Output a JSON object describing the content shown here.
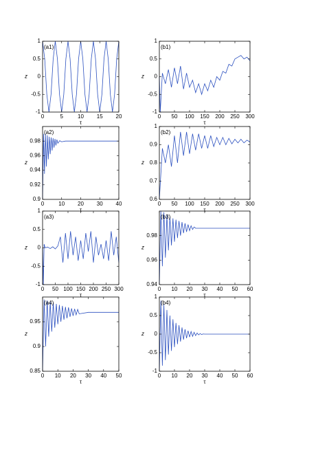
{
  "chart_data": [
    {
      "type": "line",
      "label": "(a1)",
      "xlabel": "τ",
      "ylabel": "z",
      "xlim": [
        0,
        20
      ],
      "ylim": [
        -1,
        1
      ],
      "xticks": [
        0,
        5,
        10,
        15,
        20
      ],
      "yticks": [
        -1,
        -0.5,
        0,
        0.5,
        1
      ],
      "color": "#2a4fbf",
      "x": [
        0,
        0.56,
        1.11,
        1.67,
        2.22,
        2.78,
        3.33,
        3.89,
        4.44,
        5,
        5.56,
        6.11,
        6.67,
        7.22,
        7.78,
        8.33,
        8.89,
        9.44,
        10,
        10.56,
        11.11,
        11.67,
        12.22,
        12.78,
        13.33,
        13.89,
        14.44,
        15,
        15.56,
        16.11,
        16.67,
        17.22,
        17.78,
        18.33,
        18.89,
        19.44,
        20
      ],
      "values": [
        1,
        0.5,
        -0.5,
        -1,
        -0.5,
        0.5,
        1,
        0.5,
        -0.5,
        -1,
        -0.5,
        0.5,
        1,
        0.5,
        -0.5,
        -1,
        -0.5,
        0.5,
        1,
        0.5,
        -0.5,
        -1,
        -0.5,
        0.5,
        1,
        0.5,
        -0.5,
        -1,
        -0.5,
        0.5,
        1,
        0.5,
        -0.5,
        -1,
        -0.5,
        0.5,
        1
      ]
    },
    {
      "type": "line",
      "label": "(b1)",
      "xlabel": "τ",
      "ylabel": "z",
      "xlim": [
        0,
        300
      ],
      "ylim": [
        -1,
        1
      ],
      "xticks": [
        0,
        50,
        100,
        150,
        200,
        250,
        300
      ],
      "yticks": [
        -1,
        -0.5,
        0,
        0.5,
        1
      ],
      "color": "#2a4fbf",
      "x": [
        0,
        3,
        10,
        20,
        30,
        40,
        50,
        60,
        70,
        80,
        90,
        100,
        110,
        120,
        130,
        140,
        150,
        160,
        170,
        180,
        190,
        200,
        210,
        220,
        230,
        240,
        250,
        260,
        270,
        280,
        290,
        300
      ],
      "values": [
        0,
        -1,
        0.1,
        -0.2,
        0.2,
        -0.3,
        0.25,
        -0.2,
        0.3,
        -0.35,
        0.1,
        -0.3,
        -0.1,
        -0.45,
        -0.2,
        -0.5,
        -0.2,
        -0.4,
        -0.1,
        -0.3,
        0,
        -0.1,
        0.15,
        0.1,
        0.35,
        0.3,
        0.5,
        0.55,
        0.6,
        0.5,
        0.55,
        0.45
      ]
    },
    {
      "type": "line",
      "label": "(a2)",
      "xlabel": "τ",
      "ylabel": "z",
      "xlim": [
        0,
        40
      ],
      "ylim": [
        0.9,
        1
      ],
      "xticks": [
        0,
        10,
        20,
        30,
        40
      ],
      "yticks": [
        0.9,
        0.92,
        0.94,
        0.96,
        0.98
      ],
      "color": "#2a4fbf",
      "x": [
        0,
        0.5,
        1,
        1.5,
        2,
        2.5,
        3,
        3.5,
        4,
        4.5,
        5,
        5.5,
        6,
        6.5,
        7,
        7.5,
        8,
        9,
        10,
        12,
        15,
        40
      ],
      "values": [
        0.9,
        0.99,
        0.935,
        0.99,
        0.945,
        0.988,
        0.955,
        0.986,
        0.962,
        0.985,
        0.967,
        0.984,
        0.971,
        0.983,
        0.974,
        0.982,
        0.977,
        0.9805,
        0.979,
        0.98,
        0.98,
        0.98
      ]
    },
    {
      "type": "line",
      "label": "(b2)",
      "xlabel": "τ",
      "ylabel": "z",
      "xlim": [
        0,
        300
      ],
      "ylim": [
        0.6,
        1
      ],
      "xticks": [
        0,
        50,
        100,
        150,
        200,
        250,
        300
      ],
      "yticks": [
        0.6,
        0.7,
        0.8,
        0.9,
        1
      ],
      "color": "#2a4fbf",
      "x": [
        0,
        10,
        20,
        30,
        40,
        50,
        60,
        70,
        80,
        90,
        100,
        110,
        120,
        130,
        140,
        150,
        160,
        170,
        180,
        190,
        200,
        210,
        220,
        230,
        240,
        250,
        260,
        270,
        280,
        290,
        300
      ],
      "values": [
        0.6,
        0.88,
        0.8,
        0.9,
        0.78,
        0.95,
        0.8,
        0.97,
        0.84,
        0.97,
        0.85,
        0.96,
        0.87,
        0.96,
        0.88,
        0.95,
        0.88,
        0.95,
        0.89,
        0.94,
        0.9,
        0.94,
        0.9,
        0.935,
        0.905,
        0.93,
        0.91,
        0.93,
        0.91,
        0.925,
        0.915
      ]
    },
    {
      "type": "line",
      "label": "(a3)",
      "xlabel": "τ",
      "ylabel": "z",
      "xlim": [
        0,
        300
      ],
      "ylim": [
        -1,
        1
      ],
      "xticks": [
        0,
        50,
        100,
        150,
        200,
        250,
        300
      ],
      "yticks": [
        -1,
        -0.5,
        0,
        0.5,
        1
      ],
      "color": "#2a4fbf",
      "x": [
        0,
        3,
        6,
        10,
        20,
        30,
        40,
        50,
        60,
        70,
        80,
        90,
        100,
        110,
        120,
        130,
        140,
        150,
        160,
        170,
        180,
        190,
        200,
        210,
        220,
        230,
        240,
        250,
        260,
        270,
        280,
        290,
        300
      ],
      "values": [
        0,
        -1,
        0.1,
        0,
        0.02,
        -0.02,
        0.03,
        -0.03,
        0.05,
        0.3,
        -0.4,
        0.4,
        -0.3,
        0.45,
        -0.2,
        0.3,
        -0.35,
        0.2,
        -0.3,
        0.4,
        -0.1,
        0.45,
        -0.4,
        0.3,
        -0.2,
        0.1,
        -0.3,
        0.2,
        -0.35,
        0.45,
        -0.2,
        0.3,
        -0.4
      ]
    },
    {
      "type": "line",
      "label": "(b3)",
      "xlabel": "τ",
      "ylabel": "z",
      "xlim": [
        0,
        60
      ],
      "ylim": [
        0.94,
        1
      ],
      "xticks": [
        0,
        10,
        20,
        30,
        40,
        50,
        60
      ],
      "yticks": [
        0.94,
        0.96,
        0.98
      ],
      "color": "#2a4fbf",
      "x": [
        0,
        1,
        2,
        3,
        4,
        5,
        6,
        7,
        8,
        9,
        10,
        11,
        12,
        13,
        14,
        15,
        16,
        17,
        18,
        19,
        20,
        21,
        22,
        23,
        24,
        30,
        60
      ],
      "values": [
        0.94,
        1,
        0.955,
        0.999,
        0.962,
        0.997,
        0.968,
        0.995,
        0.972,
        0.994,
        0.975,
        0.993,
        0.978,
        0.992,
        0.98,
        0.991,
        0.982,
        0.99,
        0.983,
        0.989,
        0.984,
        0.988,
        0.985,
        0.987,
        0.986,
        0.986,
        0.986
      ]
    },
    {
      "type": "line",
      "label": "(a4)",
      "xlabel": "τ",
      "ylabel": "z",
      "xlim": [
        0,
        50
      ],
      "ylim": [
        0.85,
        1
      ],
      "xticks": [
        0,
        10,
        20,
        30,
        40,
        50
      ],
      "yticks": [
        0.85,
        0.9,
        0.95
      ],
      "color": "#2a4fbf",
      "x": [
        0,
        1,
        2,
        3,
        4,
        5,
        6,
        7,
        8,
        9,
        10,
        11,
        12,
        13,
        14,
        15,
        16,
        17,
        18,
        19,
        20,
        21,
        22,
        23,
        24,
        30,
        50
      ],
      "values": [
        0.85,
        0.995,
        0.9,
        0.993,
        0.92,
        0.99,
        0.93,
        0.988,
        0.938,
        0.986,
        0.945,
        0.984,
        0.95,
        0.982,
        0.954,
        0.98,
        0.957,
        0.979,
        0.96,
        0.977,
        0.962,
        0.976,
        0.964,
        0.975,
        0.966,
        0.969,
        0.969
      ]
    },
    {
      "type": "line",
      "label": "(b4)",
      "xlabel": "τ",
      "ylabel": "z",
      "xlim": [
        0,
        60
      ],
      "ylim": [
        -1,
        1
      ],
      "xticks": [
        0,
        10,
        20,
        30,
        40,
        50,
        60
      ],
      "yticks": [
        -1,
        -0.5,
        0,
        0.5,
        1
      ],
      "color": "#2a4fbf",
      "x": [
        0,
        1,
        2,
        3,
        4,
        5,
        6,
        7,
        8,
        9,
        10,
        11,
        12,
        13,
        14,
        15,
        16,
        17,
        18,
        19,
        20,
        21,
        22,
        23,
        24,
        25,
        26,
        27,
        28,
        29,
        30,
        60
      ],
      "values": [
        -1,
        0.9,
        -0.85,
        0.8,
        -0.7,
        0.65,
        -0.55,
        0.5,
        -0.45,
        0.4,
        -0.35,
        0.3,
        -0.27,
        0.24,
        -0.2,
        0.18,
        -0.15,
        0.13,
        -0.11,
        0.09,
        -0.08,
        0.07,
        -0.06,
        0.05,
        -0.04,
        0.03,
        -0.02,
        0.015,
        -0.01,
        0.005,
        0,
        0
      ]
    }
  ]
}
